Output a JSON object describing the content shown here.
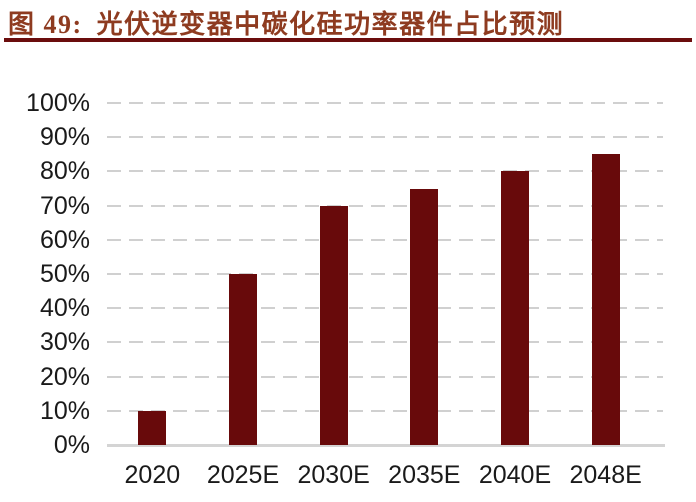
{
  "header": {
    "figure_label": "图 49:",
    "title": "光伏逆变器中碳化硅功率器件占比预测"
  },
  "colors": {
    "title_text": "#8E3B20",
    "divider": "#6B0D0D",
    "bar": "#680A0B",
    "gridline": "#D0D0D0",
    "axis_line": "#D4D4D4",
    "tick_text": "#1A1A1A",
    "background": "#FFFFFF"
  },
  "chart_data": {
    "type": "bar",
    "title": "光伏逆变器中碳化硅功率器件占比预测",
    "categories": [
      "2020",
      "2025E",
      "2030E",
      "2035E",
      "2040E",
      "2048E"
    ],
    "values": [
      10,
      50,
      70,
      75,
      80,
      85
    ],
    "unit": "%",
    "xlabel": "",
    "ylabel": "",
    "ylim": [
      0,
      100
    ],
    "ytick_step": 10,
    "ytick_labels": [
      "0%",
      "10%",
      "20%",
      "30%",
      "40%",
      "50%",
      "60%",
      "70%",
      "80%",
      "90%",
      "100%"
    ],
    "grid": "horizontal-dashed",
    "legend_position": "none",
    "bar_color": "#680A0B"
  }
}
